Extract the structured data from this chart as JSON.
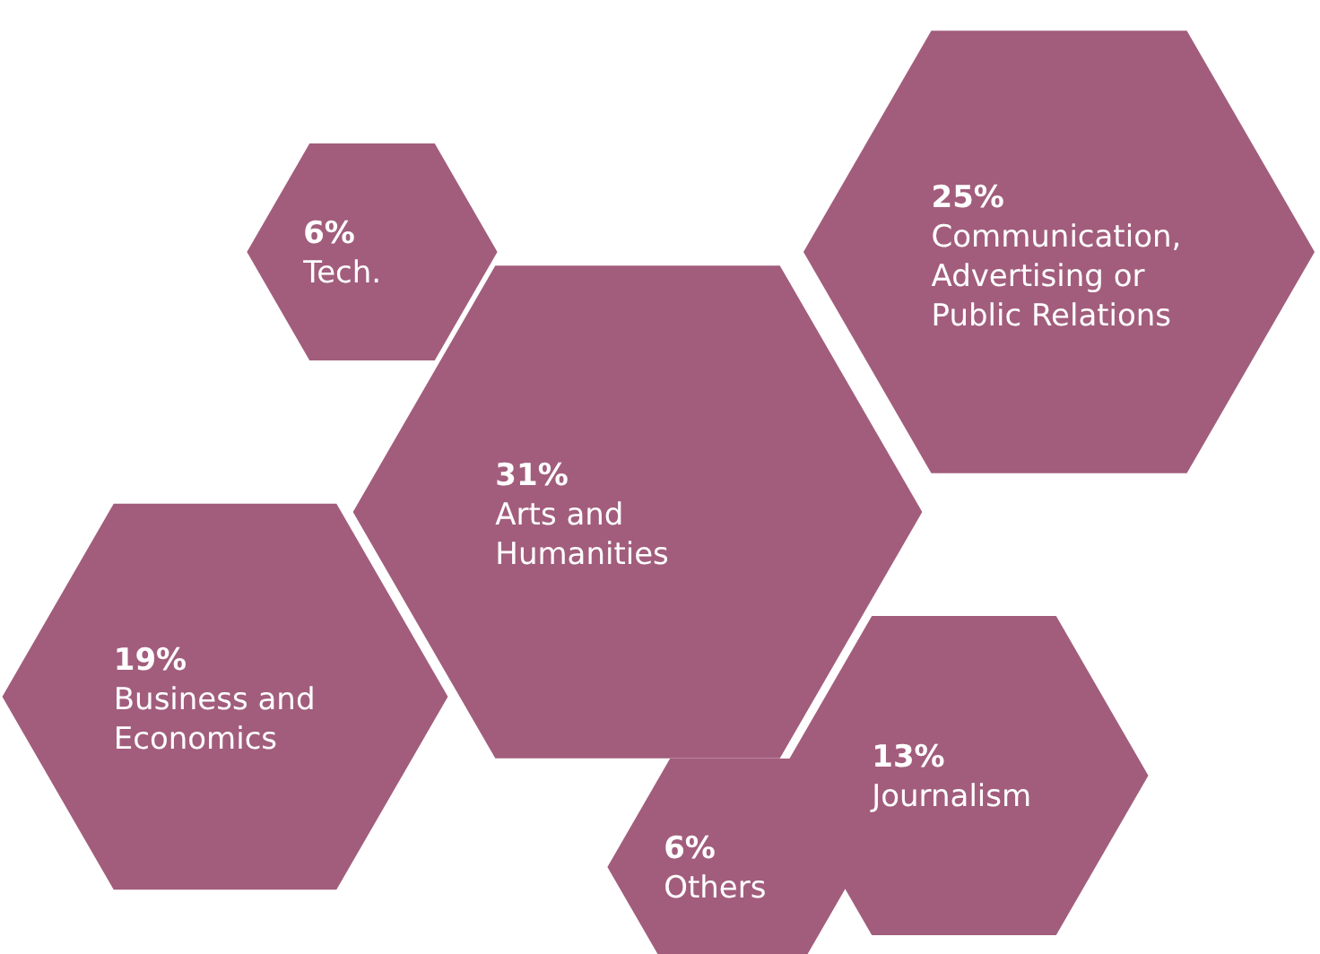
{
  "chart_data": {
    "type": "other",
    "categories": [
      "Tech.",
      "Communication,\nAdvertising or\nPublic Relations",
      "Arts and\nHumanities",
      "Business and\nEconomics",
      "Journalism",
      "Others"
    ],
    "values": [
      6,
      25,
      31,
      19,
      13,
      6
    ],
    "value_labels": [
      "6%",
      "25%",
      "31%",
      "19%",
      "13%",
      "6%"
    ],
    "color": "#a25d7c"
  }
}
